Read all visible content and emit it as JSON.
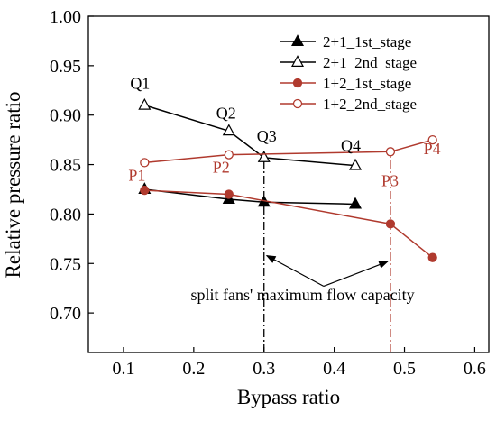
{
  "chart_data": {
    "type": "line",
    "title": "",
    "xlabel": "Bypass ratio",
    "ylabel": "Relative pressure ratio",
    "xlim": [
      0.05,
      0.62
    ],
    "ylim": [
      0.66,
      1.0
    ],
    "xticks": [
      0.1,
      0.2,
      0.3,
      0.4,
      0.5,
      0.6
    ],
    "xtick_labels": [
      "0.1",
      "0.2",
      "0.3",
      "0.4",
      "0.5",
      "0.6"
    ],
    "yticks": [
      0.7,
      0.75,
      0.8,
      0.85,
      0.9,
      0.95,
      1.0
    ],
    "ytick_labels": [
      "0.70",
      "0.75",
      "0.80",
      "0.85",
      "0.90",
      "0.95",
      "1.00"
    ],
    "grid": false,
    "legend_position": "top-right",
    "series": [
      {
        "name": "2+1_1st_stage",
        "color": "#000000",
        "marker": "triangle",
        "filled": true,
        "x": [
          0.13,
          0.25,
          0.3,
          0.43
        ],
        "y": [
          0.825,
          0.815,
          0.812,
          0.81
        ]
      },
      {
        "name": "2+1_2nd_stage",
        "color": "#000000",
        "marker": "triangle",
        "filled": false,
        "x": [
          0.13,
          0.25,
          0.3,
          0.43
        ],
        "y": [
          0.91,
          0.884,
          0.857,
          0.849
        ]
      },
      {
        "name": "1+2_1st_stage",
        "color": "#b03a2e",
        "marker": "circle",
        "filled": true,
        "x": [
          0.13,
          0.25,
          0.48,
          0.54
        ],
        "y": [
          0.824,
          0.82,
          0.79,
          0.756
        ]
      },
      {
        "name": "1+2_2nd_stage",
        "color": "#b03a2e",
        "marker": "circle",
        "filled": false,
        "x": [
          0.13,
          0.25,
          0.48,
          0.54
        ],
        "y": [
          0.852,
          0.86,
          0.863,
          0.875
        ]
      }
    ],
    "annotations": {
      "q_points": [
        {
          "label": "Q1",
          "x": 0.13,
          "y": 0.91
        },
        {
          "label": "Q2",
          "x": 0.25,
          "y": 0.884
        },
        {
          "label": "Q3",
          "x": 0.3,
          "y": 0.857
        },
        {
          "label": "Q4",
          "x": 0.43,
          "y": 0.849
        }
      ],
      "p_points": [
        {
          "label": "P1",
          "x": 0.13,
          "y": 0.852
        },
        {
          "label": "P2",
          "x": 0.25,
          "y": 0.86
        },
        {
          "label": "P3",
          "x": 0.48,
          "y": 0.863
        },
        {
          "label": "P4",
          "x": 0.54,
          "y": 0.875
        }
      ],
      "capacity_lines": [
        0.3,
        0.48
      ],
      "capacity_text": "split fans' maximum flow capacity"
    }
  }
}
